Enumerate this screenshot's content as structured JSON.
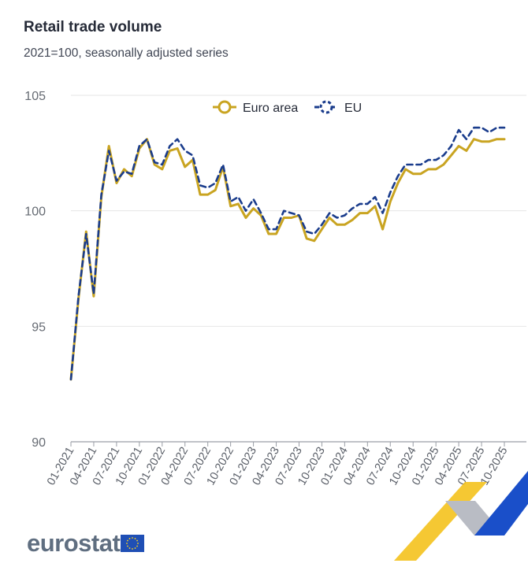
{
  "title": "Retail trade volume",
  "subtitle": "2021=100, seasonally adjusted series",
  "logo_text": "eurostat",
  "colors": {
    "euro_area": "#c9a421",
    "eu": "#1a3c8c",
    "grid": "#e6e6e6",
    "axis_text": "#666b73"
  },
  "chart_data": {
    "type": "line",
    "title": "Retail trade volume",
    "subtitle": "2021=100, seasonally adjusted series",
    "ylim": [
      90,
      105
    ],
    "yticks": [
      90,
      95,
      100,
      105
    ],
    "legend_position": "top-center",
    "x_tick_labels": [
      "01-2021",
      "04-2021",
      "07-2021",
      "10-2021",
      "01-2022",
      "04-2022",
      "07-2022",
      "10-2022",
      "01-2023",
      "04-2023",
      "07-2023",
      "10-2023",
      "01-2024",
      "04-2024",
      "07-2024",
      "10-2024",
      "01-2025",
      "04-2025",
      "07-2025",
      "10-2025"
    ],
    "x_periods": 58,
    "series": [
      {
        "name": "Euro area",
        "style": "solid",
        "values": [
          92.7,
          96.2,
          99.1,
          96.3,
          100.6,
          102.8,
          101.2,
          101.8,
          101.5,
          102.7,
          103.1,
          102.0,
          101.8,
          102.6,
          102.7,
          101.9,
          102.2,
          100.7,
          100.7,
          100.9,
          101.9,
          100.2,
          100.3,
          99.7,
          100.1,
          99.8,
          99.0,
          99.0,
          99.7,
          99.7,
          99.8,
          98.8,
          98.7,
          99.2,
          99.7,
          99.4,
          99.4,
          99.6,
          99.9,
          99.9,
          100.2,
          99.2,
          100.4,
          101.2,
          101.8,
          101.6,
          101.6,
          101.8,
          101.8,
          102.0,
          102.4,
          102.8,
          102.6,
          103.1,
          103.0,
          103.0,
          103.1,
          103.1
        ]
      },
      {
        "name": "EU",
        "style": "dashed",
        "values": [
          92.7,
          96.3,
          99.0,
          96.4,
          100.7,
          102.6,
          101.3,
          101.7,
          101.6,
          102.8,
          103.1,
          102.1,
          102.0,
          102.8,
          103.1,
          102.6,
          102.4,
          101.1,
          101.0,
          101.2,
          102.0,
          100.4,
          100.6,
          100.0,
          100.5,
          99.9,
          99.2,
          99.2,
          100.0,
          99.9,
          99.8,
          99.1,
          99.0,
          99.4,
          99.9,
          99.7,
          99.8,
          100.1,
          100.3,
          100.3,
          100.6,
          99.9,
          100.8,
          101.5,
          102.0,
          102.0,
          102.0,
          102.2,
          102.2,
          102.4,
          102.8,
          103.5,
          103.1,
          103.6,
          103.6,
          103.4,
          103.6,
          103.6
        ]
      }
    ]
  }
}
